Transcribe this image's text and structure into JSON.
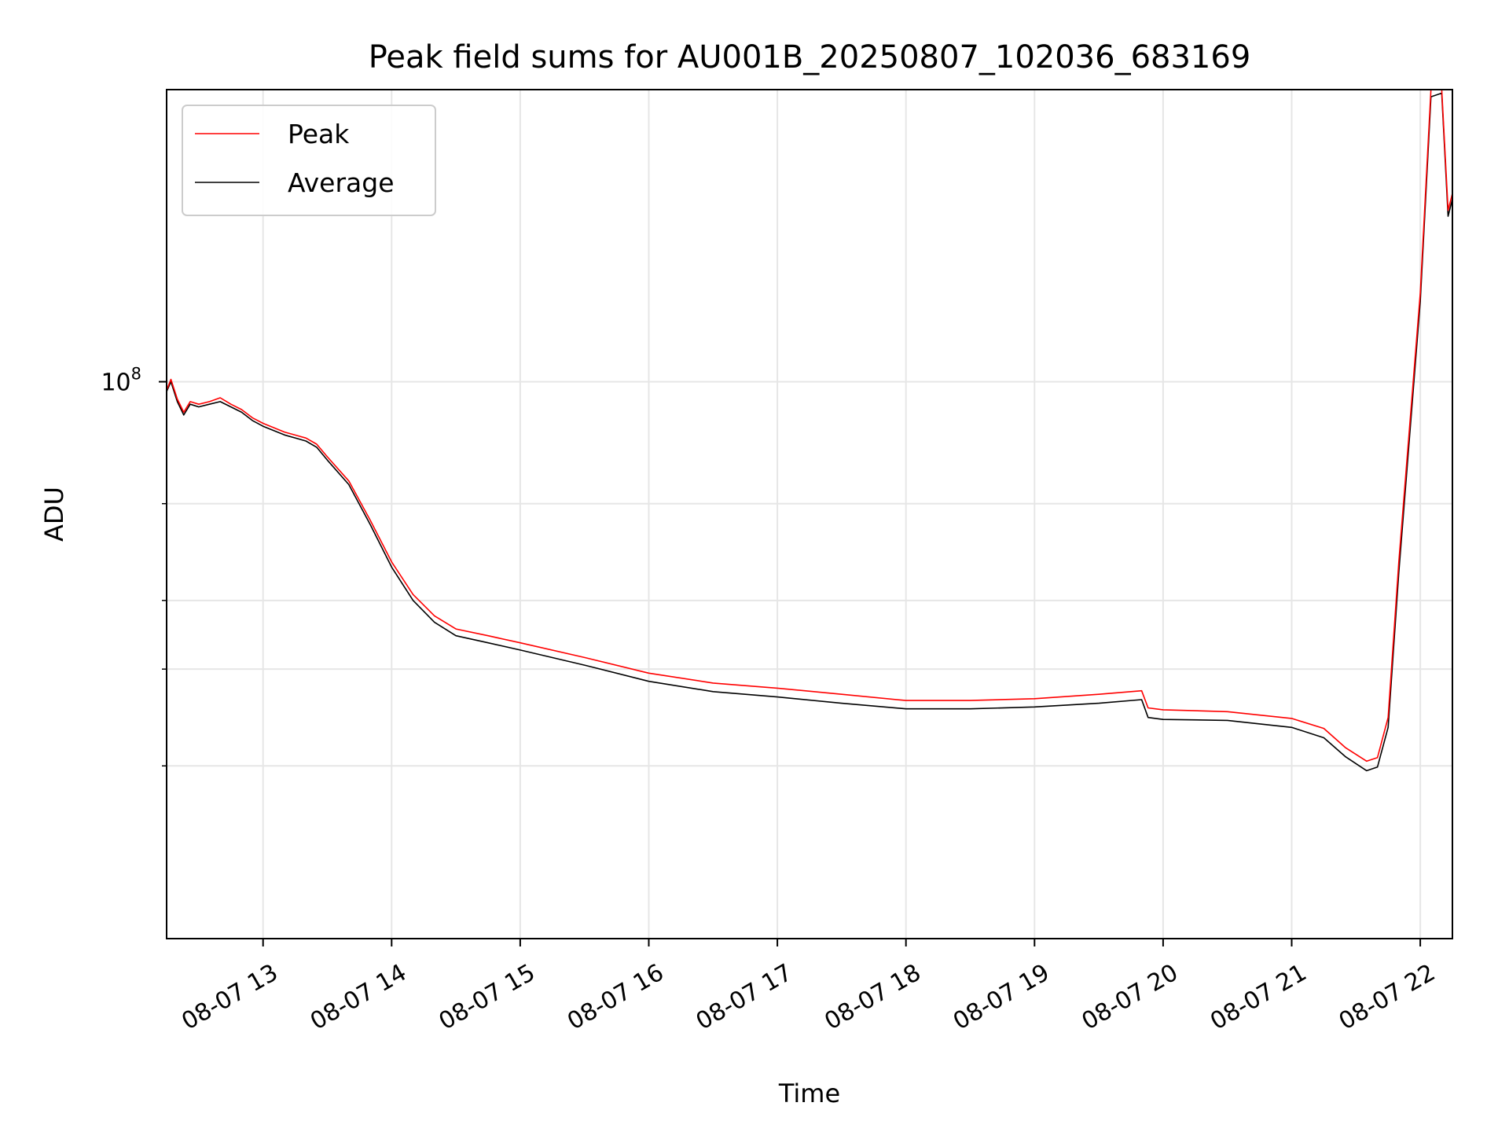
{
  "chart_data": {
    "type": "line",
    "title": "Peak field sums for AU001B_20250807_102036_683169",
    "xlabel": "Time",
    "ylabel": "ADU",
    "yscale": "log",
    "grid": true,
    "legend_position": "upper-left",
    "x_date": "2025-08-07",
    "xlim": [
      "12:15",
      "22:15"
    ],
    "ylim": [
      9700000,
      340000000
    ],
    "x_ticks": [
      {
        "time": "13:00",
        "label": "08-07 13"
      },
      {
        "time": "14:00",
        "label": "08-07 14"
      },
      {
        "time": "15:00",
        "label": "08-07 15"
      },
      {
        "time": "16:00",
        "label": "08-07 16"
      },
      {
        "time": "17:00",
        "label": "08-07 17"
      },
      {
        "time": "18:00",
        "label": "08-07 18"
      },
      {
        "time": "19:00",
        "label": "08-07 19"
      },
      {
        "time": "20:00",
        "label": "08-07 20"
      },
      {
        "time": "21:00",
        "label": "08-07 21"
      },
      {
        "time": "22:00",
        "label": "08-07 22"
      }
    ],
    "y_major_ticks": [
      {
        "value": 100000000,
        "base": "10",
        "exp": "8"
      }
    ],
    "y_minor_ticks": [
      20000000,
      30000000,
      40000000,
      60000000
    ],
    "series": [
      {
        "name": "Average",
        "color": "#000000",
        "points": [
          [
            "12:15",
            96000000
          ],
          [
            "12:17",
            100000000
          ],
          [
            "12:20",
            92000000
          ],
          [
            "12:23",
            87000000
          ],
          [
            "12:26",
            91000000
          ],
          [
            "12:30",
            90000000
          ],
          [
            "12:35",
            91000000
          ],
          [
            "12:40",
            92000000
          ],
          [
            "12:45",
            90000000
          ],
          [
            "12:50",
            88000000
          ],
          [
            "12:55",
            85000000
          ],
          [
            "13:00",
            83000000
          ],
          [
            "13:10",
            80000000
          ],
          [
            "13:20",
            78000000
          ],
          [
            "13:25",
            76000000
          ],
          [
            "13:30",
            72000000
          ],
          [
            "13:40",
            65000000
          ],
          [
            "13:50",
            55000000
          ],
          [
            "14:00",
            46000000
          ],
          [
            "14:10",
            40000000
          ],
          [
            "14:20",
            36500000
          ],
          [
            "14:30",
            34500000
          ],
          [
            "14:45",
            33500000
          ],
          [
            "15:00",
            32500000
          ],
          [
            "15:30",
            30500000
          ],
          [
            "16:00",
            28500000
          ],
          [
            "16:30",
            27300000
          ],
          [
            "17:00",
            26700000
          ],
          [
            "17:30",
            26000000
          ],
          [
            "18:00",
            25400000
          ],
          [
            "18:30",
            25400000
          ],
          [
            "19:00",
            25600000
          ],
          [
            "19:30",
            26000000
          ],
          [
            "19:50",
            26400000
          ],
          [
            "19:53",
            24500000
          ],
          [
            "20:00",
            24300000
          ],
          [
            "20:30",
            24200000
          ],
          [
            "21:00",
            23500000
          ],
          [
            "21:15",
            22500000
          ],
          [
            "21:25",
            20800000
          ],
          [
            "21:35",
            19600000
          ],
          [
            "21:40",
            19900000
          ],
          [
            "21:45",
            23500000
          ],
          [
            "21:50",
            45000000
          ],
          [
            "22:00",
            140000000
          ],
          [
            "22:05",
            330000000
          ],
          [
            "22:10",
            335000000
          ],
          [
            "22:13",
            200000000
          ],
          [
            "22:15",
            215000000
          ]
        ]
      },
      {
        "name": "Peak",
        "color": "#ff0000",
        "points": [
          [
            "12:15",
            96500000
          ],
          [
            "12:17",
            101000000
          ],
          [
            "12:20",
            93000000
          ],
          [
            "12:23",
            88000000
          ],
          [
            "12:26",
            92000000
          ],
          [
            "12:30",
            91000000
          ],
          [
            "12:35",
            92000000
          ],
          [
            "12:40",
            93500000
          ],
          [
            "12:45",
            91000000
          ],
          [
            "12:50",
            89000000
          ],
          [
            "12:55",
            86000000
          ],
          [
            "13:00",
            84000000
          ],
          [
            "13:10",
            81000000
          ],
          [
            "13:20",
            79000000
          ],
          [
            "13:25",
            77000000
          ],
          [
            "13:30",
            73000000
          ],
          [
            "13:40",
            66000000
          ],
          [
            "13:50",
            56000000
          ],
          [
            "14:00",
            47000000
          ],
          [
            "14:10",
            41000000
          ],
          [
            "14:20",
            37500000
          ],
          [
            "14:30",
            35500000
          ],
          [
            "14:45",
            34500000
          ],
          [
            "15:00",
            33500000
          ],
          [
            "15:30",
            31500000
          ],
          [
            "16:00",
            29500000
          ],
          [
            "16:30",
            28300000
          ],
          [
            "17:00",
            27700000
          ],
          [
            "17:30",
            27000000
          ],
          [
            "18:00",
            26300000
          ],
          [
            "18:30",
            26300000
          ],
          [
            "19:00",
            26500000
          ],
          [
            "19:30",
            27000000
          ],
          [
            "19:50",
            27400000
          ],
          [
            "19:53",
            25500000
          ],
          [
            "20:00",
            25300000
          ],
          [
            "20:30",
            25100000
          ],
          [
            "21:00",
            24400000
          ],
          [
            "21:15",
            23400000
          ],
          [
            "21:25",
            21600000
          ],
          [
            "21:35",
            20400000
          ],
          [
            "21:40",
            20700000
          ],
          [
            "21:45",
            24500000
          ],
          [
            "21:50",
            47000000
          ],
          [
            "22:00",
            145000000
          ],
          [
            "22:05",
            340000000
          ],
          [
            "22:10",
            340000000
          ],
          [
            "22:13",
            205000000
          ],
          [
            "22:15",
            220000000
          ]
        ]
      }
    ]
  }
}
